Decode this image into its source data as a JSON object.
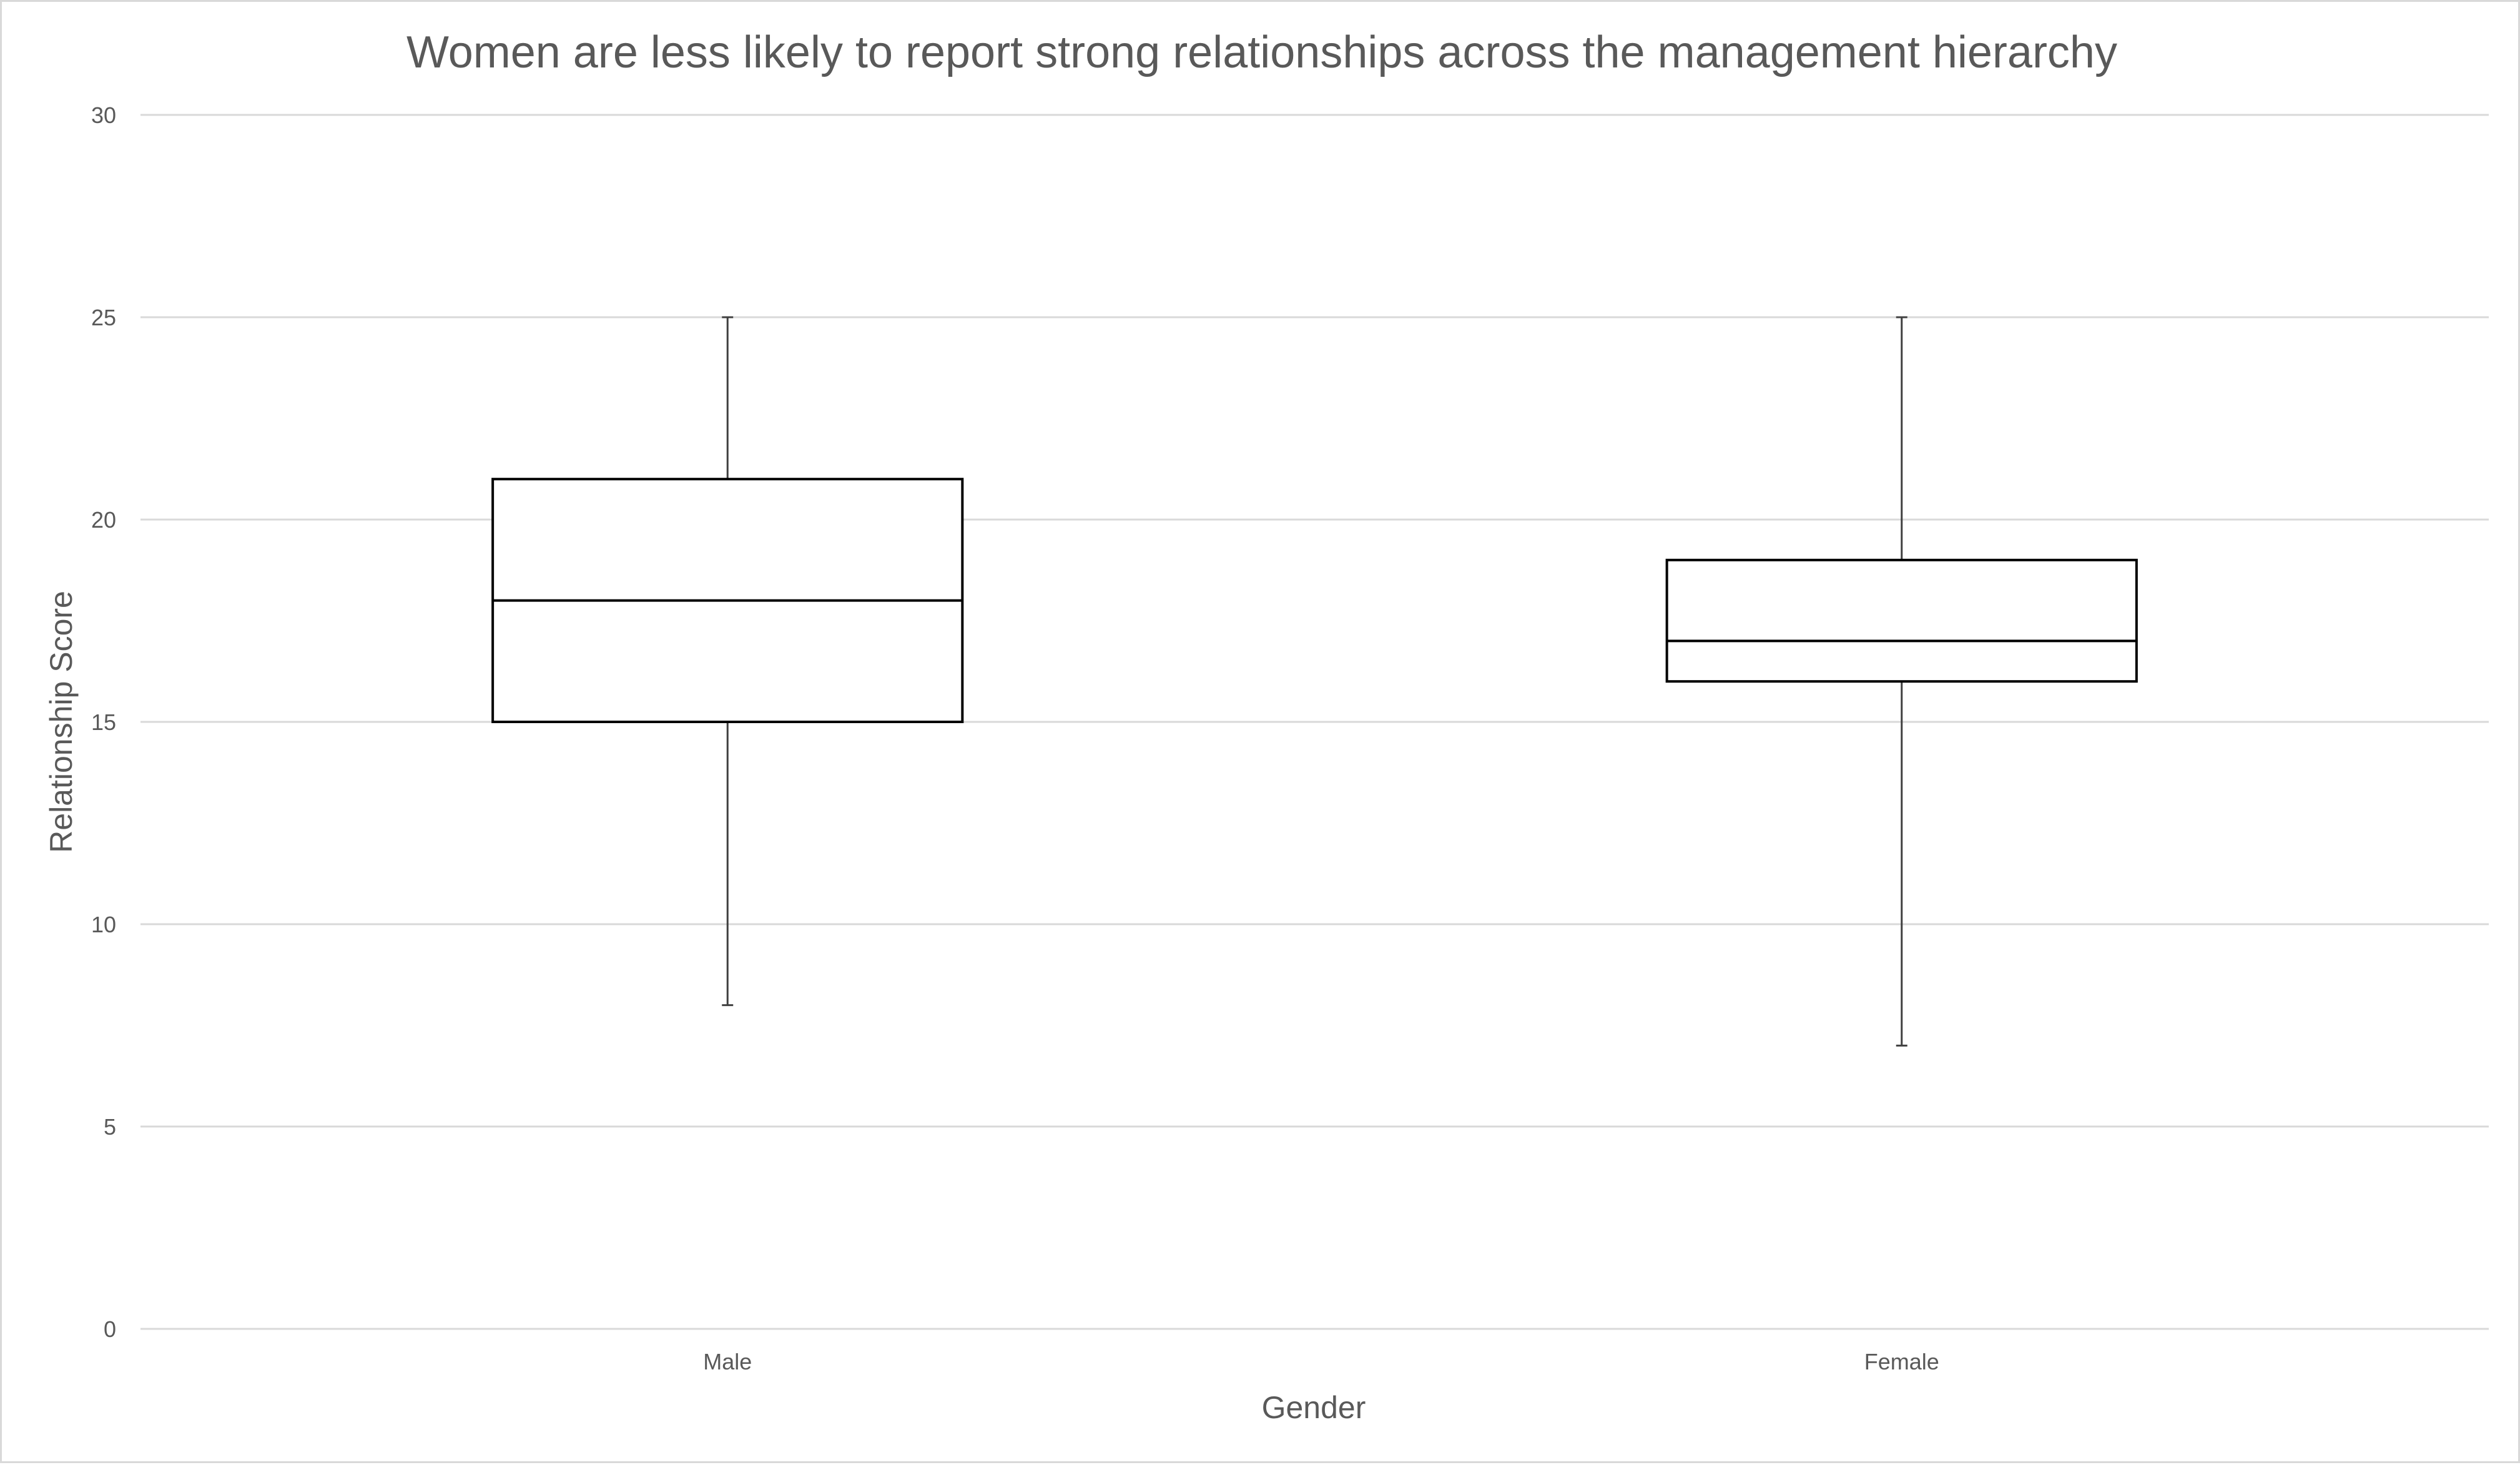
{
  "chart_data": {
    "type": "box",
    "title": "Women are less likely to report strong relationships across the management hierarchy",
    "xlabel": "Gender",
    "ylabel": "Relationship Score",
    "ylim": [
      0,
      30
    ],
    "yticks": [
      0,
      5,
      10,
      15,
      20,
      25,
      30
    ],
    "ytick_labels": [
      "0",
      "5",
      "10",
      "15",
      "20",
      "25",
      "30"
    ],
    "grid": true,
    "legend": "none",
    "categories": [
      "Male",
      "Female"
    ],
    "boxes": [
      {
        "category": "Male",
        "min": 8,
        "q1": 15,
        "median": 18,
        "q3": 21,
        "max": 25
      },
      {
        "category": "Female",
        "min": 7,
        "q1": 16,
        "median": 17,
        "q3": 19,
        "max": 25
      }
    ]
  }
}
